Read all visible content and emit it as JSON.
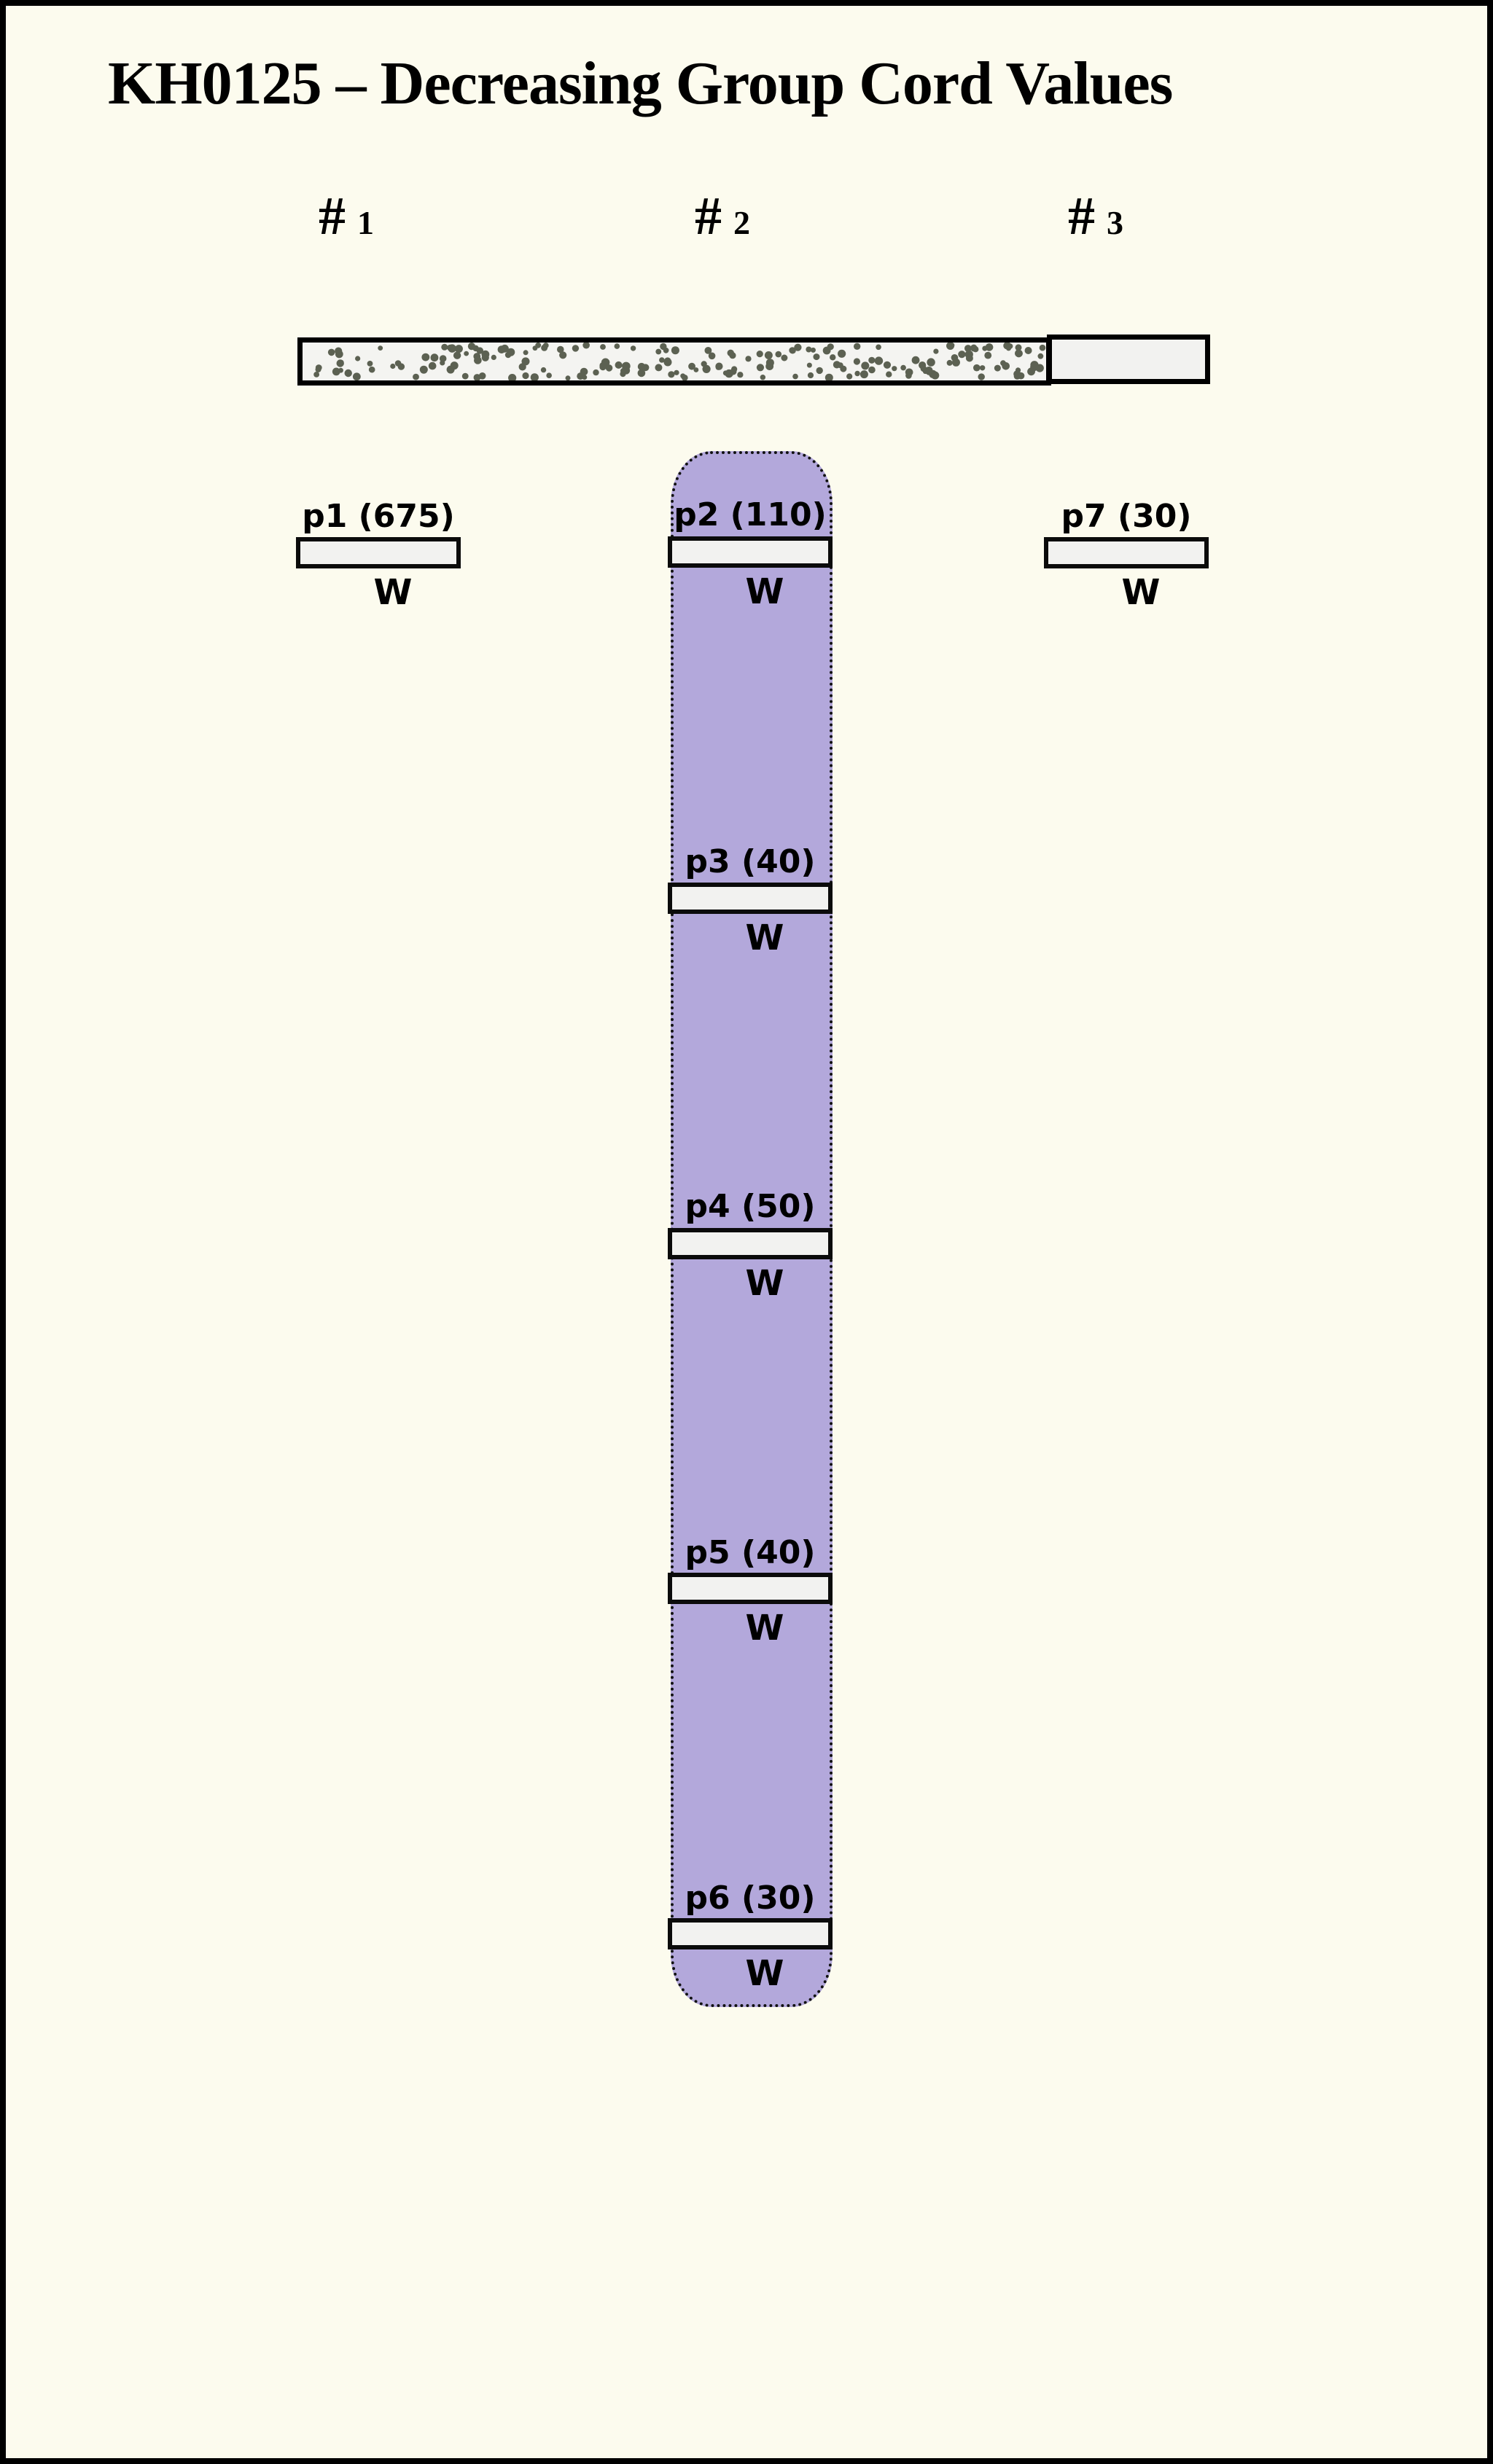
{
  "title": "KH0125 – Decreasing Group Cord Values",
  "columns": [
    {
      "hash": "#",
      "number": "1"
    },
    {
      "hash": "#",
      "number": "2"
    },
    {
      "hash": "#",
      "number": "3"
    }
  ],
  "top_bar": {
    "stippled_segment": "stippled cord section",
    "plain_segment": "plain cord section"
  },
  "pieces": [
    {
      "id": "p1",
      "label": "p1 (675)",
      "value": 675,
      "column": 1,
      "weight": "W"
    },
    {
      "id": "p2",
      "label": "p2 (110)",
      "value": 110,
      "column": 2,
      "weight": "W"
    },
    {
      "id": "p3",
      "label": "p3 (40)",
      "value": 40,
      "column": 2,
      "weight": "W"
    },
    {
      "id": "p4",
      "label": "p4 (50)",
      "value": 50,
      "column": 2,
      "weight": "W"
    },
    {
      "id": "p5",
      "label": "p5 (40)",
      "value": 40,
      "column": 2,
      "weight": "W"
    },
    {
      "id": "p6",
      "label": "p6 (30)",
      "value": 30,
      "column": 2,
      "weight": "W"
    },
    {
      "id": "p7",
      "label": "p7 (30)",
      "value": 30,
      "column": 3,
      "weight": "W"
    }
  ],
  "colors": {
    "background": "#fcfbee",
    "frame": "#000000",
    "group_cord": "#b3a8db",
    "bar_fill": "#f2f2f0",
    "stipple_bg": "#f4f4f1",
    "stipple_dot": "#5c6152",
    "text": "#000000"
  },
  "stipple": {
    "dot_count": 205
  }
}
